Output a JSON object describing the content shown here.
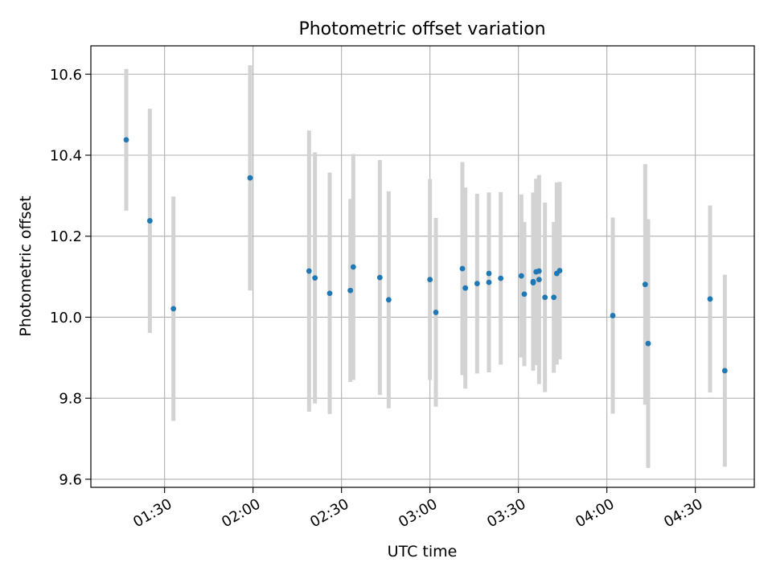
{
  "chart_data": {
    "type": "scatter",
    "title": "Photometric offset variation",
    "xlabel": "UTC time",
    "ylabel": "Photometric offset",
    "xlim": [
      "01:05",
      "04:50"
    ],
    "ylim": [
      9.58,
      10.67
    ],
    "x_ticks": [
      "01:30",
      "02:00",
      "02:30",
      "03:00",
      "03:30",
      "04:00",
      "04:30"
    ],
    "y_ticks": [
      "9.6",
      "9.8",
      "10.0",
      "10.2",
      "10.4",
      "10.6"
    ],
    "grid": true,
    "point_color": "#1f77b4",
    "errorbar_color": "#d3d3d3",
    "series": [
      {
        "points": [
          {
            "t": "01:17",
            "y": 10.438,
            "err": 0.175
          },
          {
            "t": "01:25",
            "y": 10.238,
            "err": 0.277
          },
          {
            "t": "01:33",
            "y": 10.021,
            "err": 0.277
          },
          {
            "t": "01:59",
            "y": 10.344,
            "err": 0.278
          },
          {
            "t": "02:19",
            "y": 10.114,
            "err": 0.347
          },
          {
            "t": "02:21",
            "y": 10.097,
            "err": 0.31
          },
          {
            "t": "02:26",
            "y": 10.059,
            "err": 0.298
          },
          {
            "t": "02:33",
            "y": 10.066,
            "err": 0.226
          },
          {
            "t": "02:34",
            "y": 10.124,
            "err": 0.279
          },
          {
            "t": "02:43",
            "y": 10.098,
            "err": 0.29
          },
          {
            "t": "02:46",
            "y": 10.043,
            "err": 0.268
          },
          {
            "t": "03:00",
            "y": 10.093,
            "err": 0.248
          },
          {
            "t": "03:02",
            "y": 10.012,
            "err": 0.233
          },
          {
            "t": "03:11",
            "y": 10.12,
            "err": 0.263
          },
          {
            "t": "03:12",
            "y": 10.072,
            "err": 0.248
          },
          {
            "t": "03:16",
            "y": 10.083,
            "err": 0.222
          },
          {
            "t": "03:20",
            "y": 10.086,
            "err": 0.222
          },
          {
            "t": "03:20",
            "y": 10.108,
            "err": 0.2
          },
          {
            "t": "03:24",
            "y": 10.096,
            "err": 0.213
          },
          {
            "t": "03:31",
            "y": 10.102,
            "err": 0.201
          },
          {
            "t": "03:32",
            "y": 10.057,
            "err": 0.178
          },
          {
            "t": "03:35",
            "y": 10.085,
            "err": 0.214
          },
          {
            "t": "03:35",
            "y": 10.088,
            "err": 0.22
          },
          {
            "t": "03:36",
            "y": 10.112,
            "err": 0.23
          },
          {
            "t": "03:37",
            "y": 10.114,
            "err": 0.235
          },
          {
            "t": "03:37",
            "y": 10.093,
            "err": 0.258
          },
          {
            "t": "03:39",
            "y": 10.049,
            "err": 0.234
          },
          {
            "t": "03:42",
            "y": 10.049,
            "err": 0.186
          },
          {
            "t": "03:43",
            "y": 10.108,
            "err": 0.225
          },
          {
            "t": "03:44",
            "y": 10.115,
            "err": 0.219
          },
          {
            "t": "04:02",
            "y": 10.004,
            "err": 0.242
          },
          {
            "t": "04:13",
            "y": 10.081,
            "err": 0.297
          },
          {
            "t": "04:14",
            "y": 9.935,
            "err": 0.307
          },
          {
            "t": "04:35",
            "y": 10.045,
            "err": 0.231
          },
          {
            "t": "04:40",
            "y": 9.868,
            "err": 0.237
          }
        ]
      }
    ]
  }
}
